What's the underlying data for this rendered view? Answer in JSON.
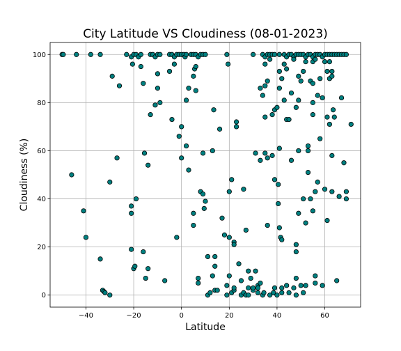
{
  "chart_data": {
    "type": "scatter",
    "title": "City Latitude VS Cloudiness (08-01-2023)",
    "xlabel": "Latitude",
    "ylabel": "Cloudiness (%)",
    "xlim": [
      -55,
      75
    ],
    "ylim": [
      -5,
      105
    ],
    "xticks": [
      -40,
      -20,
      0,
      20,
      40,
      60
    ],
    "yticks": [
      0,
      20,
      40,
      60,
      80,
      100
    ],
    "grid": true,
    "marker_color": "#008080",
    "marker_edge_color": "#000000",
    "series": [
      {
        "points": [
          [
            -50,
            100
          ],
          [
            -49.5,
            100
          ],
          [
            -44,
            100
          ],
          [
            -38,
            100
          ],
          [
            -34,
            100
          ],
          [
            -23,
            100
          ],
          [
            -21,
            99
          ],
          [
            -20,
            100
          ],
          [
            -19,
            100
          ],
          [
            -18,
            99
          ],
          [
            -17,
            100
          ],
          [
            -13,
            100
          ],
          [
            -12,
            100
          ],
          [
            -11,
            99
          ],
          [
            -10,
            100
          ],
          [
            -9,
            100
          ],
          [
            -5,
            100
          ],
          [
            -4,
            100
          ],
          [
            -3,
            99
          ],
          [
            -2,
            100
          ],
          [
            -1,
            100
          ],
          [
            0,
            100
          ],
          [
            1,
            100
          ],
          [
            1.5,
            99
          ],
          [
            2,
            100
          ],
          [
            4,
            100
          ],
          [
            5,
            100
          ],
          [
            6,
            100
          ],
          [
            7,
            99
          ],
          [
            8,
            100
          ],
          [
            9,
            100
          ],
          [
            10,
            100
          ],
          [
            19,
            100
          ],
          [
            30,
            100
          ],
          [
            34,
            100
          ],
          [
            35,
            99
          ],
          [
            36,
            100
          ],
          [
            37,
            100
          ],
          [
            38,
            100
          ],
          [
            39,
            100
          ],
          [
            41,
            100
          ],
          [
            43,
            100
          ],
          [
            44,
            99
          ],
          [
            45,
            100
          ],
          [
            46,
            100
          ],
          [
            47,
            99
          ],
          [
            48,
            100
          ],
          [
            49,
            100
          ],
          [
            50,
            100
          ],
          [
            51,
            100
          ],
          [
            52,
            99
          ],
          [
            53,
            100
          ],
          [
            54,
            100
          ],
          [
            55,
            99
          ],
          [
            56,
            100
          ],
          [
            57,
            100
          ],
          [
            58,
            100
          ],
          [
            59,
            99
          ],
          [
            60,
            100
          ],
          [
            61,
            100
          ],
          [
            62,
            100
          ],
          [
            63,
            100
          ],
          [
            64,
            100
          ],
          [
            65,
            100
          ],
          [
            66,
            100
          ],
          [
            67,
            100
          ],
          [
            68,
            100
          ],
          [
            69,
            100
          ],
          [
            -46,
            50
          ],
          [
            -41,
            35
          ],
          [
            -40,
            24
          ],
          [
            -34,
            15
          ],
          [
            -33,
            2
          ],
          [
            -32.5,
            1.5
          ],
          [
            -32,
            1
          ],
          [
            -30,
            0
          ],
          [
            -30,
            47
          ],
          [
            -29,
            91
          ],
          [
            -27,
            57
          ],
          [
            -26,
            87
          ],
          [
            -21,
            19
          ],
          [
            -21,
            34
          ],
          [
            -21,
            37
          ],
          [
            -20.5,
            96
          ],
          [
            -20,
            11
          ],
          [
            -19.5,
            12
          ],
          [
            -19,
            40
          ],
          [
            -17,
            95
          ],
          [
            -16,
            18
          ],
          [
            -15.5,
            59
          ],
          [
            -15,
            7
          ],
          [
            -16,
            88
          ],
          [
            -14,
            54
          ],
          [
            -14,
            11
          ],
          [
            -13,
            75
          ],
          [
            -11,
            79
          ],
          [
            -10,
            86
          ],
          [
            -10,
            92
          ],
          [
            -9,
            80
          ],
          [
            -7,
            6
          ],
          [
            -5,
            93
          ],
          [
            -4,
            73
          ],
          [
            -3,
            96
          ],
          [
            -2,
            24
          ],
          [
            -1,
            66
          ],
          [
            0,
            57
          ],
          [
            0,
            70
          ],
          [
            2,
            81
          ],
          [
            2,
            62
          ],
          [
            3,
            86
          ],
          [
            3,
            52
          ],
          [
            5,
            34
          ],
          [
            5,
            29
          ],
          [
            5,
            91
          ],
          [
            5.5,
            94
          ],
          [
            6,
            95
          ],
          [
            6,
            85
          ],
          [
            7,
            7
          ],
          [
            7,
            5
          ],
          [
            8,
            43
          ],
          [
            9,
            59
          ],
          [
            9,
            42
          ],
          [
            9.5,
            36
          ],
          [
            10,
            39
          ],
          [
            11,
            16
          ],
          [
            11,
            0
          ],
          [
            12,
            1
          ],
          [
            13,
            8
          ],
          [
            13,
            60
          ],
          [
            13.5,
            77
          ],
          [
            14,
            2
          ],
          [
            14,
            12
          ],
          [
            14,
            16
          ],
          [
            15,
            2
          ],
          [
            16,
            69
          ],
          [
            17,
            32
          ],
          [
            18,
            25
          ],
          [
            19,
            4
          ],
          [
            19,
            0
          ],
          [
            19.5,
            96
          ],
          [
            20,
            24
          ],
          [
            20,
            43
          ],
          [
            20,
            8
          ],
          [
            21,
            48
          ],
          [
            21,
            1
          ],
          [
            22,
            2
          ],
          [
            22,
            3
          ],
          [
            22,
            22
          ],
          [
            22,
            21
          ],
          [
            23,
            72
          ],
          [
            23,
            70
          ],
          [
            24,
            13
          ],
          [
            25,
            6
          ],
          [
            25,
            0
          ],
          [
            26,
            1
          ],
          [
            26,
            44
          ],
          [
            27,
            0
          ],
          [
            27,
            27
          ],
          [
            28,
            10
          ],
          [
            28,
            3
          ],
          [
            28,
            0
          ],
          [
            29,
            7
          ],
          [
            30,
            2
          ],
          [
            30,
            3
          ],
          [
            31,
            10
          ],
          [
            31,
            59
          ],
          [
            32,
            4
          ],
          [
            32,
            1
          ],
          [
            32,
            3
          ],
          [
            33,
            5
          ],
          [
            33,
            86
          ],
          [
            33,
            56
          ],
          [
            34,
            0
          ],
          [
            34,
            83
          ],
          [
            34.5,
            1
          ],
          [
            35,
            59
          ],
          [
            35,
            74
          ],
          [
            35,
            87
          ],
          [
            35,
            96
          ],
          [
            36,
            29
          ],
          [
            36,
            89
          ],
          [
            36,
            57
          ],
          [
            37,
            0
          ],
          [
            37,
            98
          ],
          [
            38,
            58
          ],
          [
            38,
            75
          ],
          [
            38.5,
            1
          ],
          [
            39,
            77
          ],
          [
            39,
            48
          ],
          [
            39,
            3
          ],
          [
            40,
            78
          ],
          [
            40,
            0
          ],
          [
            40.5,
            46
          ],
          [
            40.5,
            38
          ],
          [
            41,
            61
          ],
          [
            41,
            28
          ],
          [
            41,
            93
          ],
          [
            41,
            86
          ],
          [
            41.5,
            24
          ],
          [
            42,
            90
          ],
          [
            42,
            23
          ],
          [
            42,
            3
          ],
          [
            42,
            1
          ],
          [
            43,
            96
          ],
          [
            43,
            81
          ],
          [
            44,
            94
          ],
          [
            44,
            73
          ],
          [
            44,
            4
          ],
          [
            45,
            73
          ],
          [
            45,
            1
          ],
          [
            46,
            84
          ],
          [
            46,
            56
          ],
          [
            47,
            98
          ],
          [
            47,
            3
          ],
          [
            48,
            78
          ],
          [
            48,
            21
          ],
          [
            48,
            18
          ],
          [
            48,
            7
          ],
          [
            48,
            0
          ],
          [
            49,
            60
          ],
          [
            49,
            34
          ],
          [
            49,
            81
          ],
          [
            49,
            91
          ],
          [
            50,
            4
          ],
          [
            50,
            89
          ],
          [
            51,
            93
          ],
          [
            51,
            40
          ],
          [
            51,
            1
          ],
          [
            52,
            97
          ],
          [
            52,
            30
          ],
          [
            52,
            4
          ],
          [
            53,
            51
          ],
          [
            53,
            62
          ],
          [
            53,
            60
          ],
          [
            54,
            40
          ],
          [
            54,
            89
          ],
          [
            55,
            35
          ],
          [
            55,
            80
          ],
          [
            55,
            75
          ],
          [
            55,
            88
          ],
          [
            55,
            97
          ],
          [
            56,
            5
          ],
          [
            56,
            8
          ],
          [
            56,
            43
          ],
          [
            56,
            98
          ],
          [
            57,
            83
          ],
          [
            57,
            47
          ],
          [
            58,
            90
          ],
          [
            58,
            65
          ],
          [
            59,
            4
          ],
          [
            59,
            82
          ],
          [
            60,
            97
          ],
          [
            60,
            44
          ],
          [
            61,
            74
          ],
          [
            61,
            93
          ],
          [
            61,
            31
          ],
          [
            62,
            90
          ],
          [
            62,
            71
          ],
          [
            62,
            97
          ],
          [
            63,
            93
          ],
          [
            63,
            91
          ],
          [
            63,
            58
          ],
          [
            63,
            43
          ],
          [
            63.5,
            77
          ],
          [
            64,
            74
          ],
          [
            65,
            6
          ],
          [
            66,
            41
          ],
          [
            67,
            82
          ],
          [
            68,
            55
          ],
          [
            69,
            43
          ],
          [
            69,
            40
          ],
          [
            71,
            71
          ]
        ]
      }
    ]
  }
}
